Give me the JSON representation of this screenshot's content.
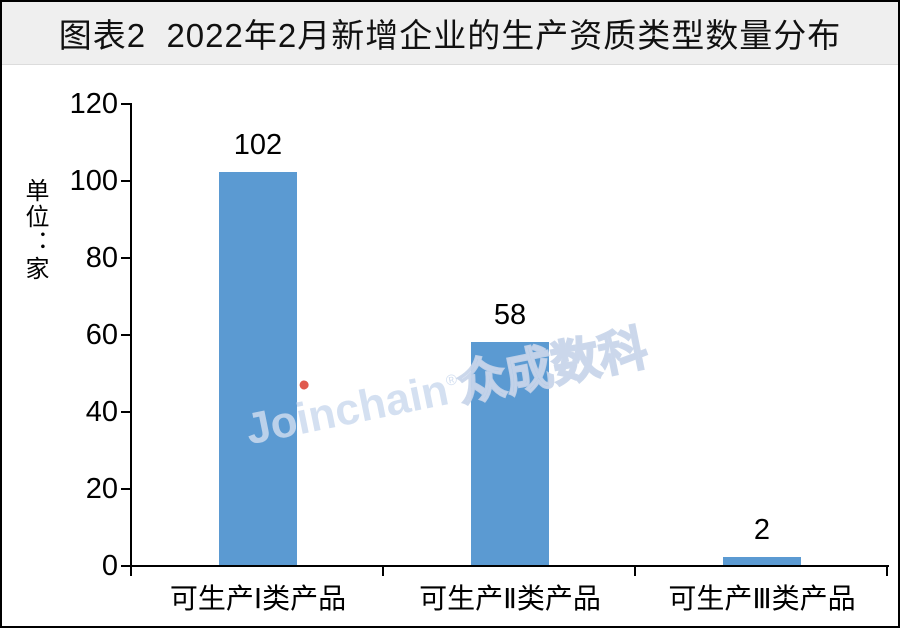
{
  "banner": {
    "title": "图表2  2022年2月新增企业的生产资质类型数量分布",
    "bg_color": "#efefef",
    "text_color": "#111111"
  },
  "watermark": {
    "latin": "Joinchain",
    "reg_mark": "®",
    "cjk": "众成数科",
    "color": "#cddaee",
    "dot_color": "#e05a4e"
  },
  "chart_data": {
    "type": "bar",
    "title": "图表2  2022年2月新增企业的生产资质类型数量分布",
    "unit_label": "单位：家",
    "categories": [
      "可生产Ⅰ类产品",
      "可生产Ⅱ类产品",
      "可生产Ⅲ类产品"
    ],
    "values": [
      102,
      58,
      2
    ],
    "value_labels": [
      "102",
      "58",
      "2"
    ],
    "yticks": [
      0,
      20,
      40,
      60,
      80,
      100,
      120
    ],
    "ylim": [
      0,
      120
    ],
    "xlabel": "",
    "ylabel": "单位：家",
    "bar_color": "#5b9ad2",
    "grid": false,
    "legend": "none"
  }
}
